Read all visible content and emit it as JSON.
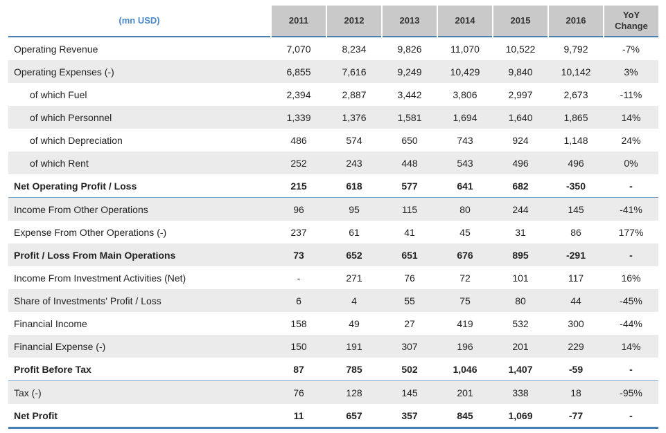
{
  "chart_data": {
    "type": "table",
    "unit_label": "(mn USD)",
    "columns": [
      "2011",
      "2012",
      "2013",
      "2014",
      "2015",
      "2016"
    ],
    "change_header": [
      "YoY",
      "Change"
    ],
    "rows": [
      {
        "label": "Operating Revenue",
        "values": [
          "7,070",
          "8,234",
          "9,826",
          "11,070",
          "10,522",
          "9,792"
        ],
        "change": "-7%"
      },
      {
        "label": "Operating Expenses (-)",
        "values": [
          "6,855",
          "7,616",
          "9,249",
          "10,429",
          "9,840",
          "10,142"
        ],
        "change": "3%"
      },
      {
        "label": "of which Fuel",
        "values": [
          "2,394",
          "2,887",
          "3,442",
          "3,806",
          "2,997",
          "2,673"
        ],
        "change": "-11%"
      },
      {
        "label": "of which Personnel",
        "values": [
          "1,339",
          "1,376",
          "1,581",
          "1,694",
          "1,640",
          "1,865"
        ],
        "change": "14%"
      },
      {
        "label": "of which Depreciation",
        "values": [
          "486",
          "574",
          "650",
          "743",
          "924",
          "1,148"
        ],
        "change": "24%"
      },
      {
        "label": "of which Rent",
        "values": [
          "252",
          "243",
          "448",
          "543",
          "496",
          "496"
        ],
        "change": "0%"
      },
      {
        "label": "Net Operating Profit / Loss",
        "values": [
          "215",
          "618",
          "577",
          "641",
          "682",
          "-350"
        ],
        "change": "-"
      },
      {
        "label": "Income From Other Operations",
        "values": [
          "96",
          "95",
          "115",
          "80",
          "244",
          "145"
        ],
        "change": "-41%"
      },
      {
        "label": "Expense From Other Operations  (-)",
        "values": [
          "237",
          "61",
          "41",
          "45",
          "31",
          "86"
        ],
        "change": "177%"
      },
      {
        "label": "Profit / Loss From Main Operations",
        "values": [
          "73",
          "652",
          "651",
          "676",
          "895",
          "-291"
        ],
        "change": "-"
      },
      {
        "label": "Income From Investment Activities (Net)",
        "values": [
          "-",
          "271",
          "76",
          "72",
          "101",
          "117"
        ],
        "change": "16%"
      },
      {
        "label": "Share of Investments' Profit / Loss",
        "values": [
          "6",
          "4",
          "55",
          "75",
          "80",
          "44"
        ],
        "change": "-45%"
      },
      {
        "label": "Financial Income",
        "values": [
          "158",
          "49",
          "27",
          "419",
          "532",
          "300"
        ],
        "change": "-44%"
      },
      {
        "label": "Financial Expense (-)",
        "values": [
          "150",
          "191",
          "307",
          "196",
          "201",
          "229"
        ],
        "change": "14%"
      },
      {
        "label": "Profit Before Tax",
        "values": [
          "87",
          "785",
          "502",
          "1,046",
          "1,407",
          "-59"
        ],
        "change": "-"
      },
      {
        "label": "Tax (-)",
        "values": [
          "76",
          "128",
          "145",
          "201",
          "338",
          "18"
        ],
        "change": "-95%"
      },
      {
        "label": "Net Profit",
        "values": [
          "11",
          "657",
          "357",
          "845",
          "1,069",
          "-77"
        ],
        "change": "-"
      }
    ]
  }
}
